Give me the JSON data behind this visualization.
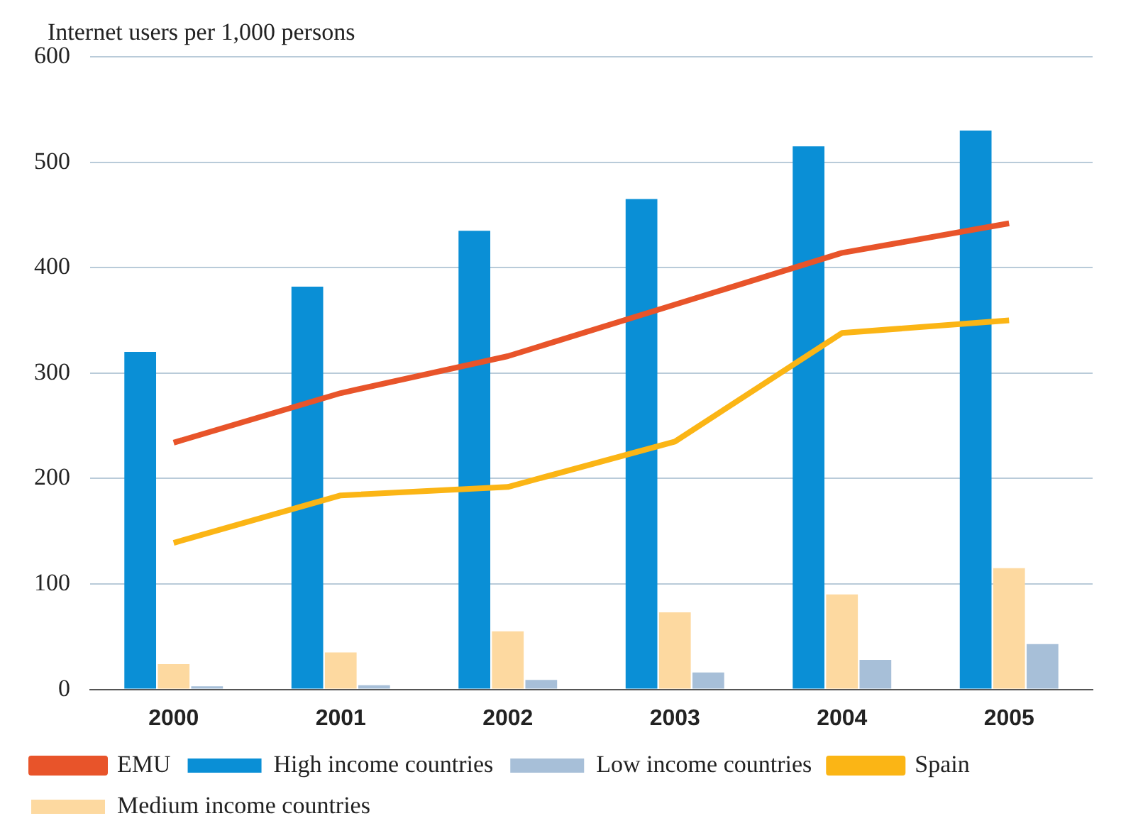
{
  "chart_data": {
    "type": "bar",
    "ylabel": "Internet users per 1,000 persons",
    "categories": [
      "2000",
      "2001",
      "2002",
      "2003",
      "2004",
      "2005"
    ],
    "series": [
      {
        "name": "EMU",
        "type": "line",
        "color": "#e8542a",
        "values": [
          234,
          281,
          316,
          365,
          414,
          442
        ]
      },
      {
        "name": "High income countries",
        "color": "#0a8fd6",
        "values": [
          320,
          382,
          435,
          465,
          515,
          530
        ]
      },
      {
        "name": "Low income countries",
        "color": "#a7bfd8",
        "values": [
          3,
          4,
          9,
          16,
          28,
          43
        ]
      },
      {
        "name": "Spain",
        "type": "line",
        "color": "#fbb515",
        "values": [
          139,
          184,
          192,
          235,
          338,
          350
        ]
      },
      {
        "name": "Medium income countries",
        "color": "#fdd9a0",
        "values": [
          24,
          35,
          55,
          73,
          90,
          115
        ]
      }
    ],
    "ylim": [
      0,
      600
    ],
    "yticks": [
      0,
      100,
      200,
      300,
      400,
      500,
      600
    ],
    "grid": "y",
    "legend": "bottom",
    "marker": "none"
  }
}
